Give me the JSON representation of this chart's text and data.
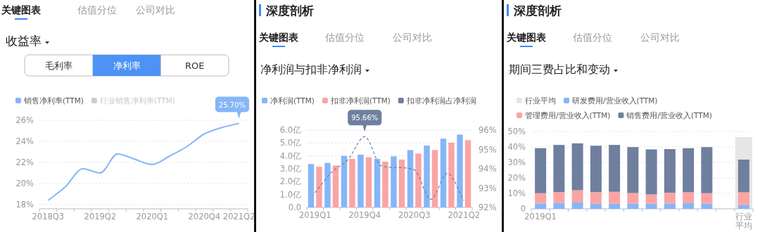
{
  "chart_data": [
    {
      "type": "line",
      "title": "收益率",
      "annotations": [
        "关键图表",
        "估值分位",
        "公司对比",
        "毛利率",
        "净利率",
        "ROE",
        {
          "text": "25.70%",
          "x": "2021Q2",
          "y": 25.7
        }
      ],
      "categories": [
        "2018Q3",
        null,
        null,
        "2019Q2",
        null,
        null,
        "2020Q1",
        null,
        null,
        "2020Q4",
        null,
        "2021Q2"
      ],
      "series": [
        {
          "name": "销售净利率(TTM)",
          "color": "#85b6f8",
          "values": [
            18.4,
            19.7,
            21.4,
            21.0,
            22.8,
            22.3,
            21.8,
            22.6,
            23.5,
            24.7,
            25.3,
            25.7
          ]
        },
        {
          "name": "行业销售净利率(TTM)",
          "color": "#cccccc",
          "values": [
            null,
            null,
            null,
            null,
            null,
            null,
            null,
            null,
            null,
            null,
            null,
            null
          ]
        }
      ],
      "ylim": [
        17.6,
        26
      ],
      "yticks": [
        {
          "value": 18,
          "label": "18%"
        },
        {
          "value": 20,
          "label": "20%"
        },
        {
          "value": 22,
          "label": "22%"
        },
        {
          "value": 24,
          "label": "24%"
        },
        {
          "value": 26,
          "label": "26%"
        }
      ],
      "grid": "y",
      "legend": "top left",
      "marker": "none"
    },
    {
      "type": "bar",
      "title": "净利润与扣非净利润",
      "annotations": [
        "深度剖析",
        "关键图表",
        "估值分位",
        "公司对比",
        "95.66%"
      ],
      "categories": [
        "2019Q1",
        null,
        null,
        "2019Q4",
        null,
        null,
        "2020Q3",
        null,
        null,
        "2021Q2"
      ],
      "series": [
        {
          "name": "净利润(TTM)",
          "color": "#85b6f8",
          "values": [
            3.36,
            3.45,
            4.0,
            4.09,
            3.76,
            3.96,
            4.45,
            4.8,
            5.33,
            5.65
          ]
        },
        {
          "name": "扣非净利润(TTM)",
          "color": "#fba4a4",
          "values": [
            3.15,
            3.25,
            3.76,
            3.89,
            3.55,
            3.71,
            4.18,
            4.45,
            5.02,
            5.22
          ]
        },
        {
          "name": "扣非净利润占净利润",
          "color": "#6f7f9e",
          "type": "line",
          "axis": "y2",
          "line_style": "dashed",
          "values": [
            92.76,
            93.82,
            94.48,
            95.66,
            94.15,
            94.06,
            93.94,
            92.42,
            93.76,
            92.36
          ]
        }
      ],
      "ylim": [
        0,
        6
      ],
      "yticks": [
        {
          "value": 0,
          "label": "0.0"
        },
        {
          "value": 1,
          "label": "1.0亿"
        },
        {
          "value": 2,
          "label": "2.0亿"
        },
        {
          "value": 3,
          "label": "3.0亿"
        },
        {
          "value": 4,
          "label": "4.0亿"
        },
        {
          "value": 5,
          "label": "5.0亿"
        },
        {
          "value": 6,
          "label": "6.0亿"
        }
      ],
      "y2lim": [
        92,
        96
      ],
      "y2ticks": [
        {
          "value": 92,
          "label": "92%"
        },
        {
          "value": 93,
          "label": "93%"
        },
        {
          "value": 94,
          "label": "94%"
        },
        {
          "value": 95,
          "label": "95%"
        },
        {
          "value": 96,
          "label": "96%"
        }
      ],
      "grid": "y",
      "legend": "top left",
      "marker": "none"
    },
    {
      "type": "bar",
      "title": "期间三费占比和变动",
      "annotations": [
        "深度剖析",
        "关键图表",
        "估值分位",
        "公司对比"
      ],
      "categories": [
        "2019Q1",
        null,
        null,
        null,
        null,
        null,
        null,
        null,
        null,
        null,
        null,
        "行业平均"
      ],
      "stacked": true,
      "bands": [
        {
          "axis": "x",
          "from": "行业平均",
          "to": "行业平均",
          "label": "行业平均",
          "color": "#e6e6e6"
        }
      ],
      "series": [
        {
          "name": "研发费用/营业收入(TTM)",
          "color": "#85b6f8",
          "values": [
            3.3,
            3.8,
            4.1,
            3.3,
            3.3,
            3.3,
            3.3,
            3.3,
            3.6,
            3.3,
            null,
            2.4
          ]
        },
        {
          "name": "管理费用/营业收入(TTM)",
          "color": "#fba4a4",
          "values": [
            6.8,
            7.0,
            7.9,
            7.5,
            7.7,
            6.9,
            6.0,
            7.1,
            7.1,
            6.8,
            null,
            8.3
          ]
        },
        {
          "name": "销售费用/营业收入(TTM)",
          "color": "#6f7f9e",
          "values": [
            29.1,
            30.5,
            30.3,
            30.0,
            30.3,
            29.7,
            29.1,
            28.2,
            28.5,
            29.8,
            null,
            21.1
          ]
        }
      ],
      "ylim": [
        0,
        50
      ],
      "yticks": [
        0,
        {
          "value": 10,
          "label": "10%"
        },
        {
          "value": 20,
          "label": "20%"
        },
        {
          "value": 30,
          "label": "30%"
        },
        {
          "value": 40,
          "label": "40%"
        },
        {
          "value": 50,
          "label": "50%"
        }
      ],
      "grid": "y",
      "legend": "top left"
    }
  ]
}
